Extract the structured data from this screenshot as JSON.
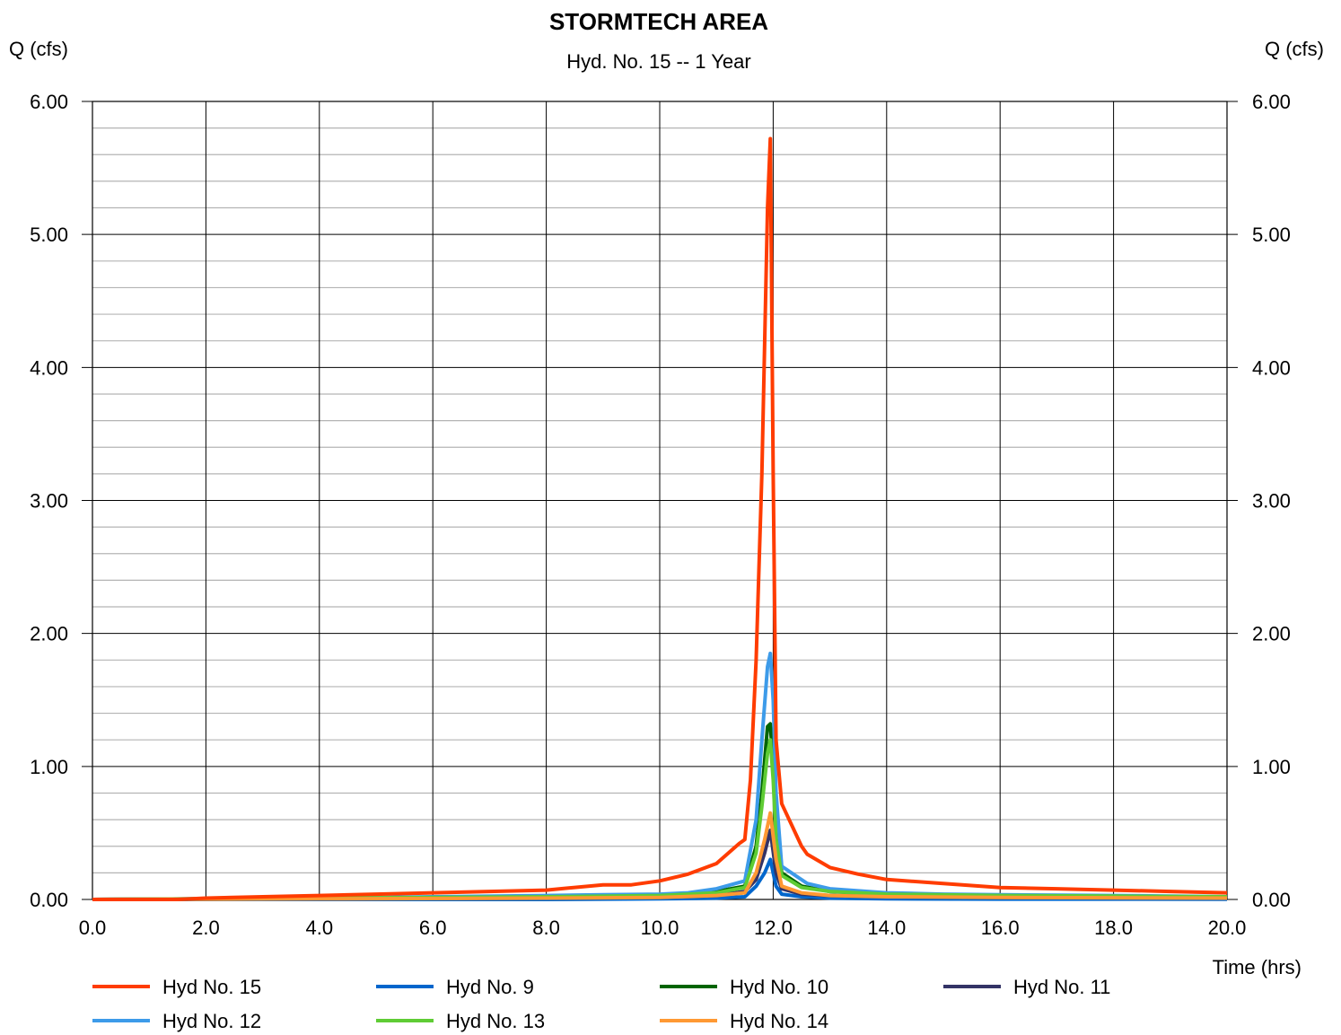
{
  "chart_data": {
    "type": "line",
    "title": "STORMTECH AREA",
    "subtitle": "Hyd. No. 15 -- 1 Year",
    "ylabel_left": "Q (cfs)",
    "ylabel_right": "Q (cfs)",
    "xlabel": "Time (hrs)",
    "xlim": [
      0,
      20
    ],
    "ylim": [
      0,
      6
    ],
    "x_ticks": [
      "0.0",
      "2.0",
      "4.0",
      "6.0",
      "8.0",
      "10.0",
      "12.0",
      "14.0",
      "16.0",
      "18.0",
      "20.0"
    ],
    "y_ticks": [
      "0.00",
      "1.00",
      "2.00",
      "3.00",
      "4.00",
      "5.00",
      "6.00"
    ],
    "grid": "major lines every 2.0 hrs and 1.00 cfs; minor horizontal lines every 0.20 cfs",
    "legend_position": "bottom",
    "series": [
      {
        "name": "Hyd No. 15",
        "color": "#ff3c00",
        "points": [
          [
            0,
            0
          ],
          [
            1.5,
            0
          ],
          [
            2,
            0.01
          ],
          [
            3,
            0.02
          ],
          [
            4,
            0.03
          ],
          [
            5,
            0.04
          ],
          [
            6,
            0.05
          ],
          [
            7,
            0.06
          ],
          [
            8,
            0.07
          ],
          [
            9,
            0.11
          ],
          [
            9.5,
            0.11
          ],
          [
            10,
            0.14
          ],
          [
            10.5,
            0.19
          ],
          [
            11,
            0.27
          ],
          [
            11.4,
            0.42
          ],
          [
            11.5,
            0.45
          ],
          [
            11.6,
            0.9
          ],
          [
            11.7,
            1.8
          ],
          [
            11.8,
            3.2
          ],
          [
            11.9,
            5.2
          ],
          [
            11.95,
            5.72
          ],
          [
            12,
            3.2
          ],
          [
            12.05,
            1.2
          ],
          [
            12.15,
            0.72
          ],
          [
            12.5,
            0.4
          ],
          [
            12.6,
            0.34
          ],
          [
            13,
            0.24
          ],
          [
            13.5,
            0.19
          ],
          [
            14,
            0.15
          ],
          [
            15,
            0.12
          ],
          [
            16,
            0.09
          ],
          [
            17,
            0.08
          ],
          [
            18,
            0.07
          ],
          [
            19,
            0.06
          ],
          [
            20,
            0.05
          ]
        ]
      },
      {
        "name": "Hyd No. 9",
        "color": "#0066cc",
        "points": [
          [
            0,
            0
          ],
          [
            4,
            0
          ],
          [
            8,
            0
          ],
          [
            10,
            0.005
          ],
          [
            11,
            0.01
          ],
          [
            11.5,
            0.02
          ],
          [
            11.7,
            0.1
          ],
          [
            11.85,
            0.2
          ],
          [
            11.95,
            0.3
          ],
          [
            12.05,
            0.1
          ],
          [
            12.15,
            0.04
          ],
          [
            12.5,
            0.02
          ],
          [
            13,
            0.01
          ],
          [
            14,
            0.005
          ],
          [
            16,
            0.003
          ],
          [
            20,
            0.002
          ]
        ]
      },
      {
        "name": "Hyd No. 10",
        "color": "#006400",
        "points": [
          [
            0,
            0
          ],
          [
            4,
            0.01
          ],
          [
            8,
            0.02
          ],
          [
            9,
            0.025
          ],
          [
            10,
            0.03
          ],
          [
            10.5,
            0.04
          ],
          [
            11,
            0.06
          ],
          [
            11.5,
            0.1
          ],
          [
            11.7,
            0.4
          ],
          [
            11.8,
            0.8
          ],
          [
            11.9,
            1.3
          ],
          [
            11.95,
            1.32
          ],
          [
            12,
            1.0
          ],
          [
            12.05,
            0.5
          ],
          [
            12.15,
            0.2
          ],
          [
            12.5,
            0.1
          ],
          [
            13,
            0.06
          ],
          [
            14,
            0.04
          ],
          [
            16,
            0.03
          ],
          [
            18,
            0.02
          ],
          [
            20,
            0.02
          ]
        ]
      },
      {
        "name": "Hyd No. 11",
        "color": "#333366",
        "points": [
          [
            0,
            0
          ],
          [
            4,
            0.005
          ],
          [
            8,
            0.01
          ],
          [
            10,
            0.015
          ],
          [
            11,
            0.03
          ],
          [
            11.5,
            0.06
          ],
          [
            11.7,
            0.15
          ],
          [
            11.85,
            0.35
          ],
          [
            11.95,
            0.52
          ],
          [
            12.05,
            0.2
          ],
          [
            12.15,
            0.08
          ],
          [
            12.5,
            0.04
          ],
          [
            13,
            0.03
          ],
          [
            14,
            0.02
          ],
          [
            16,
            0.015
          ],
          [
            20,
            0.01
          ]
        ]
      },
      {
        "name": "Hyd No. 12",
        "color": "#3d9be9",
        "points": [
          [
            0,
            0
          ],
          [
            2,
            0.005
          ],
          [
            4,
            0.01
          ],
          [
            6,
            0.02
          ],
          [
            8,
            0.03
          ],
          [
            9,
            0.035
          ],
          [
            10,
            0.04
          ],
          [
            10.5,
            0.05
          ],
          [
            11,
            0.08
          ],
          [
            11.5,
            0.14
          ],
          [
            11.7,
            0.6
          ],
          [
            11.8,
            1.2
          ],
          [
            11.9,
            1.75
          ],
          [
            11.95,
            1.85
          ],
          [
            12,
            1.5
          ],
          [
            12.05,
            0.8
          ],
          [
            12.15,
            0.25
          ],
          [
            12.6,
            0.12
          ],
          [
            13,
            0.08
          ],
          [
            14,
            0.05
          ],
          [
            15,
            0.04
          ],
          [
            16,
            0.035
          ],
          [
            18,
            0.03
          ],
          [
            20,
            0.02
          ]
        ]
      },
      {
        "name": "Hyd No. 13",
        "color": "#5fcc35",
        "points": [
          [
            0,
            0
          ],
          [
            4,
            0.01
          ],
          [
            8,
            0.02
          ],
          [
            10,
            0.03
          ],
          [
            11,
            0.05
          ],
          [
            11.5,
            0.09
          ],
          [
            11.7,
            0.35
          ],
          [
            11.8,
            0.7
          ],
          [
            11.9,
            1.1
          ],
          [
            11.95,
            1.2
          ],
          [
            12,
            0.9
          ],
          [
            12.05,
            0.45
          ],
          [
            12.15,
            0.18
          ],
          [
            12.5,
            0.09
          ],
          [
            13,
            0.06
          ],
          [
            14,
            0.04
          ],
          [
            16,
            0.03
          ],
          [
            18,
            0.025
          ],
          [
            20,
            0.02
          ]
        ]
      },
      {
        "name": "Hyd No. 14",
        "color": "#ff9933",
        "points": [
          [
            0,
            0
          ],
          [
            4,
            0.005
          ],
          [
            8,
            0.01
          ],
          [
            10,
            0.015
          ],
          [
            11,
            0.03
          ],
          [
            11.5,
            0.05
          ],
          [
            11.7,
            0.2
          ],
          [
            11.85,
            0.45
          ],
          [
            11.95,
            0.65
          ],
          [
            12.05,
            0.3
          ],
          [
            12.15,
            0.1
          ],
          [
            12.5,
            0.05
          ],
          [
            13,
            0.03
          ],
          [
            14,
            0.02
          ],
          [
            16,
            0.015
          ],
          [
            20,
            0.01
          ]
        ]
      }
    ]
  }
}
